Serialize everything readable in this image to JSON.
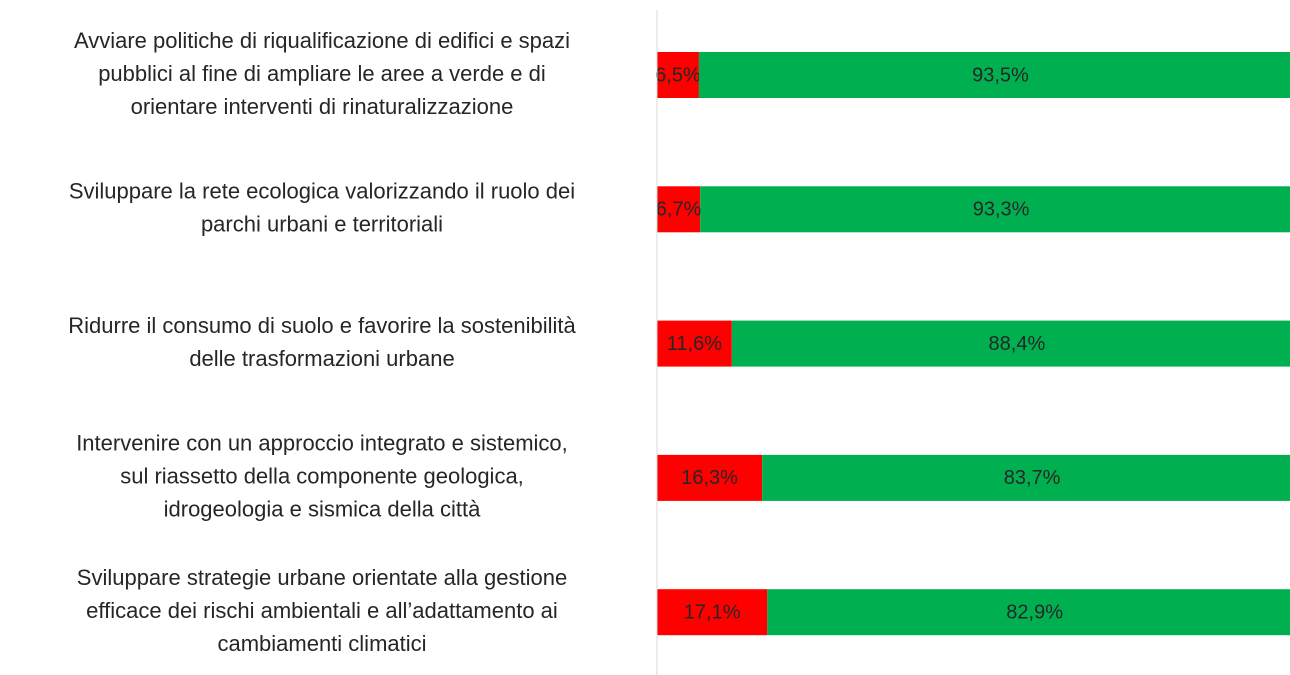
{
  "chart_data": {
    "type": "stacked-bar-horizontal",
    "categories": [
      [
        "Avviare politiche di riqualificazione di edifici e spazi",
        "pubblici al fine di ampliare le aree a verde e di",
        "orientare interventi di rinaturalizzazione"
      ],
      [
        "Sviluppare la rete ecologica valorizzando il ruolo dei",
        "parchi urbani e territoriali"
      ],
      [
        "Ridurre il consumo di suolo e favorire la sostenibilità",
        "delle trasformazioni urbane"
      ],
      [
        "Intervenire con un approccio integrato e sistemico,",
        "sul riassetto della componente geologica,",
        "idrogeologia e sismica della città"
      ],
      [
        "Sviluppare strategie urbane orientate alla gestione",
        "efficace dei rischi ambientali e all’adattamento ai",
        "cambiamenti climatici"
      ]
    ],
    "series": [
      {
        "color": "#ff0000",
        "values": [
          6.5,
          6.7,
          11.6,
          16.3,
          17.1
        ],
        "value_labels": [
          "6,5%",
          "6,7%",
          "11,6%",
          "16,3%",
          "17,1%"
        ]
      },
      {
        "color": "#00b050",
        "values": [
          93.5,
          93.3,
          88.4,
          83.7,
          82.9
        ],
        "value_labels": [
          "93,5%",
          "93,3%",
          "88,4%",
          "83,7%",
          "82,9%"
        ]
      }
    ],
    "xlim": [
      0,
      100
    ]
  }
}
